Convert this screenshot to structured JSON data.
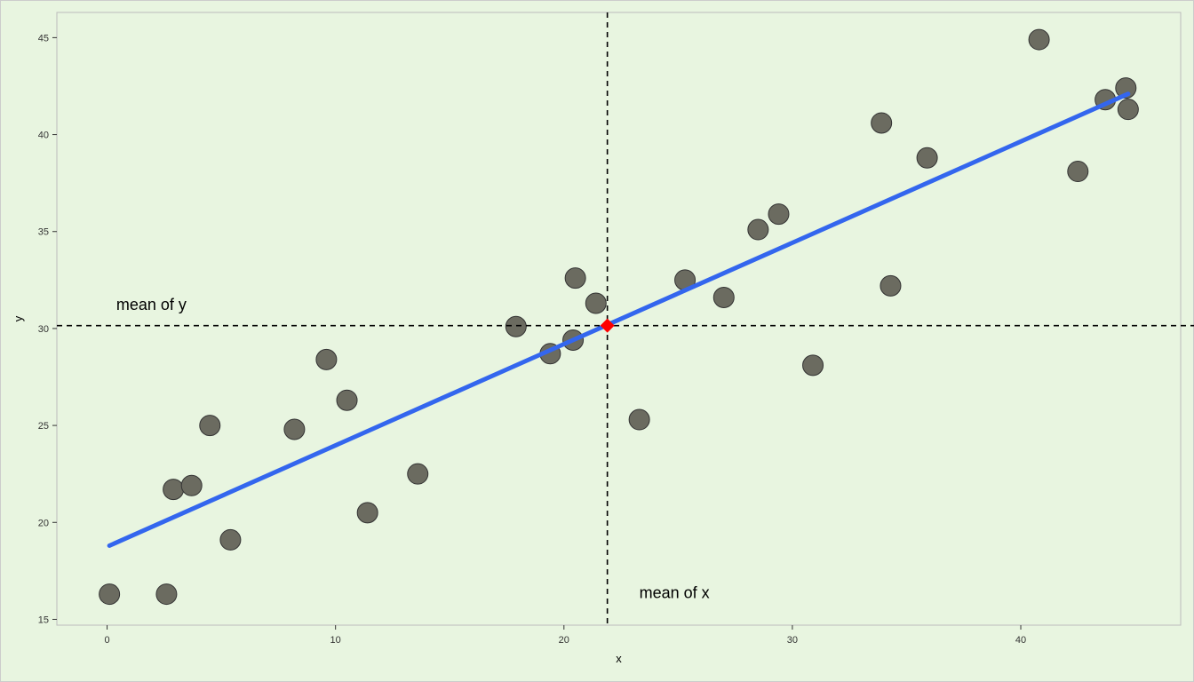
{
  "chart_data": {
    "type": "scatter",
    "xlabel": "x",
    "ylabel": "y",
    "xlim": [
      -2.2,
      47
    ],
    "ylim": [
      14.7,
      46.3
    ],
    "x_ticks": [
      0,
      10,
      20,
      30,
      40
    ],
    "y_ticks": [
      15,
      20,
      25,
      30,
      35,
      40,
      45
    ],
    "grid": false,
    "points": [
      {
        "x": 0.1,
        "y": 16.3
      },
      {
        "x": 2.6,
        "y": 16.3
      },
      {
        "x": 2.9,
        "y": 21.7
      },
      {
        "x": 3.7,
        "y": 21.9
      },
      {
        "x": 4.5,
        "y": 25.0
      },
      {
        "x": 5.4,
        "y": 19.1
      },
      {
        "x": 8.2,
        "y": 24.8
      },
      {
        "x": 9.6,
        "y": 28.4
      },
      {
        "x": 10.5,
        "y": 26.3
      },
      {
        "x": 11.4,
        "y": 20.5
      },
      {
        "x": 13.6,
        "y": 22.5
      },
      {
        "x": 17.9,
        "y": 30.1
      },
      {
        "x": 19.4,
        "y": 28.7
      },
      {
        "x": 20.4,
        "y": 29.4
      },
      {
        "x": 20.5,
        "y": 32.6
      },
      {
        "x": 21.4,
        "y": 31.3
      },
      {
        "x": 23.3,
        "y": 25.3
      },
      {
        "x": 25.3,
        "y": 32.5
      },
      {
        "x": 27.0,
        "y": 31.6
      },
      {
        "x": 28.5,
        "y": 35.1
      },
      {
        "x": 29.4,
        "y": 35.9
      },
      {
        "x": 30.9,
        "y": 28.1
      },
      {
        "x": 33.9,
        "y": 40.6
      },
      {
        "x": 34.3,
        "y": 32.2
      },
      {
        "x": 35.9,
        "y": 38.8
      },
      {
        "x": 40.8,
        "y": 44.9
      },
      {
        "x": 42.5,
        "y": 38.1
      },
      {
        "x": 43.7,
        "y": 41.8
      },
      {
        "x": 44.6,
        "y": 42.4
      },
      {
        "x": 44.7,
        "y": 41.3
      }
    ],
    "regression_line": {
      "x": [
        0.1,
        44.7
      ],
      "y": [
        18.8,
        42.1
      ],
      "color": "#3366ee"
    },
    "mean_point": {
      "x": 21.9,
      "y": 30.15,
      "color": "#ff0000"
    },
    "mean_x": 21.9,
    "mean_y": 30.15,
    "annotations": [
      {
        "text": "mean of y",
        "x": 0.4,
        "y": 30.95
      },
      {
        "text": "mean of x",
        "x": 23.3,
        "y": 16.1
      }
    ],
    "colors": {
      "background": "#e8f5e0",
      "point_fill": "#6b6b60",
      "point_stroke": "#333333"
    }
  }
}
